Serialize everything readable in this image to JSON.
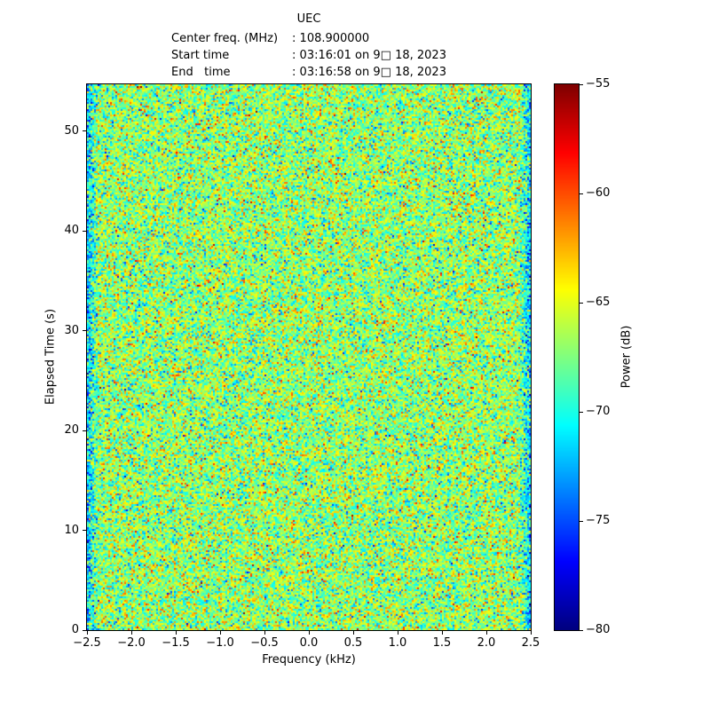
{
  "header": {
    "title": "UEC",
    "lines": [
      {
        "label": "Center freq. (MHz)",
        "value": ": 108.900000"
      },
      {
        "label": "Start time",
        "value": ": 03:16:01 on 9□ 18, 2023"
      },
      {
        "label": "End   time",
        "value": ": 03:16:58 on 9□ 18, 2023"
      }
    ]
  },
  "chart_data": {
    "type": "heatmap",
    "title": "UEC",
    "center_freq_mhz": 108.9,
    "start_time": "03:16:01 on 9□ 18, 2023",
    "end_time": "03:16:58 on 9□ 18, 2023",
    "xlabel": "Frequency (kHz)",
    "ylabel": "Elapsed Time (s)",
    "colorbar_label": "Power (dB)",
    "xlim": [
      -2.5,
      2.5
    ],
    "ylim": [
      0,
      54.7
    ],
    "clim": [
      -80,
      -55
    ],
    "x_ticks": [
      -2.5,
      -2.0,
      -1.5,
      -1.0,
      -0.5,
      0.0,
      0.5,
      1.0,
      1.5,
      2.0,
      2.5
    ],
    "y_ticks": [
      0,
      10,
      20,
      30,
      40,
      50
    ],
    "colorbar_ticks": [
      -55,
      -60,
      -65,
      -70,
      -75,
      -80
    ],
    "colormap": "jet",
    "grid": false,
    "legend": "colorbar-right",
    "data_summary": "Uniform wideband noise spectrogram with no visible signal features; power mostly -70 to -63 dB (green/yellow speckle) with cyan/blue speckles, rare orange/red specks, and slightly attenuated (bluer) columns at the extreme left/right frequency edges.",
    "noise": {
      "mean_db": -67,
      "std_db": 3,
      "seed": 42,
      "cols": 250,
      "rows": 308,
      "edge_attenuation_db": 6
    }
  }
}
